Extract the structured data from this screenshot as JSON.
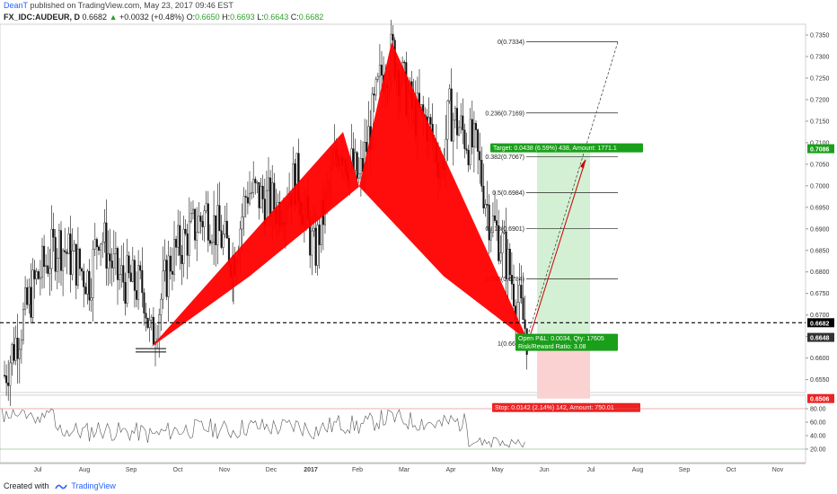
{
  "header": {
    "user": "DeanT",
    "published": "published on TradingView.com, May 23, 2017 09:46 EST"
  },
  "ticker": {
    "symbol": "FX_IDC:AUDEUR, D",
    "last": "0.6682",
    "change": "+0.0032 (+0.48%)",
    "open_label": "O:",
    "open": "0.6650",
    "high_label": "H:",
    "high": "0.6693",
    "low_label": "L:",
    "low": "0.6643",
    "close_label": "C:",
    "close": "0.6682"
  },
  "footer": {
    "created": "Created with",
    "brand": "TradingView"
  },
  "colors": {
    "pattern": "#ff0000",
    "profit_zone": "#d4f0d4",
    "loss_zone": "#fbd2d2",
    "target_badge": "#1a9f1a",
    "stop_badge": "#ee2222",
    "price_line": "#000000",
    "rsi_line": "#555555"
  },
  "chart_data": {
    "type": "candlestick",
    "price_axis": {
      "ticks": [
        "0.7350",
        "0.7300",
        "0.7250",
        "0.7200",
        "0.7150",
        "0.7100",
        "0.7050",
        "0.7000",
        "0.6950",
        "0.6900",
        "0.6850",
        "0.6800",
        "0.6750",
        "0.6700",
        "0.6650",
        "0.6600",
        "0.6550"
      ],
      "labels_highlight": [
        {
          "text": "0.7086",
          "color": "#1a9f1a",
          "value": 0.7086
        },
        {
          "text": "0.6682",
          "color": "#000000",
          "value": 0.6682
        },
        {
          "text": "0.6648",
          "color": "#333333",
          "value": 0.6648
        },
        {
          "text": "0.6506",
          "color": "#ee2222",
          "value": 0.6506
        }
      ]
    },
    "rsi_axis": {
      "ticks": [
        "80.00",
        "60.00",
        "40.00",
        "20.00"
      ],
      "upper": 80,
      "lower": 20
    },
    "time_axis": [
      "Jul",
      "Aug",
      "Sep",
      "Oct",
      "Nov",
      "Dec",
      "2017",
      "Feb",
      "Mar",
      "Apr",
      "May",
      "Jun",
      "Jul",
      "Aug",
      "Sep",
      "Oct",
      "Nov"
    ],
    "fib_levels": [
      {
        "label": "0(0.7334)",
        "value": 0.7334
      },
      {
        "label": "0.236(0.7169)",
        "value": 0.7169
      },
      {
        "label": "0.382(0.7067)",
        "value": 0.7067
      },
      {
        "label": "0.5(0.6984)",
        "value": 0.6984
      },
      {
        "label": "0.618(0.6901)",
        "value": 0.6901
      },
      {
        "label": "0.786(0.6784)",
        "value": 0.6784
      },
      {
        "label": "1(0.6634)",
        "value": 0.6634
      }
    ],
    "pattern_points": [
      0.6625,
      0.7125,
      0.6998,
      0.7334,
      0.664
    ],
    "position": {
      "target": "Target: 0.0438 (6.59%) 438, Amount: 1771.1",
      "open": "Open P&L: 0.0034, Qty: 17605",
      "ratio": "Risk/Reward Ratio: 3.08",
      "stop": "Stop: 0.0142 (2.14%) 142, Amount: 750.01",
      "entry": 0.6648,
      "target_price": 0.7086,
      "stop_price": 0.6506
    },
    "last_price": 0.6682
  }
}
